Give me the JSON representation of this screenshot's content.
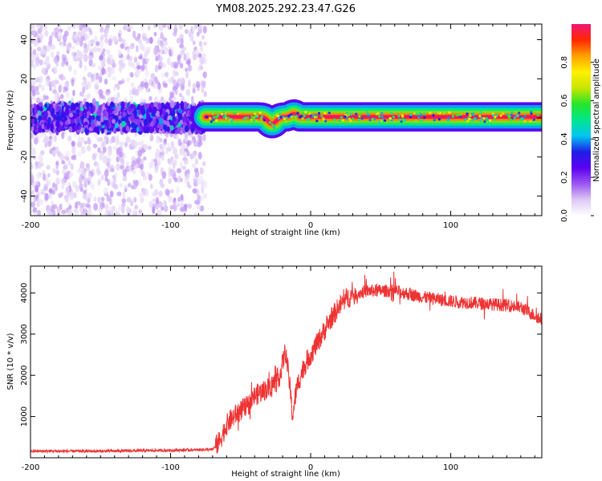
{
  "page_title": "YM08.2025.292.23.47.G26",
  "chart_data": [
    {
      "type": "heatmap",
      "title": "YM08.2025.292.23.47.G26",
      "xlabel": "Height of straight line (km)",
      "ylabel": "Frequency (Hz)",
      "xlim": [
        -200,
        165
      ],
      "ylim": [
        -50,
        48
      ],
      "xticks": [
        -200,
        -100,
        0,
        100
      ],
      "yticks": [
        -40,
        -20,
        0,
        20,
        40
      ],
      "colorbar": {
        "label": "Normalized spectral amplitude",
        "range": [
          0,
          1
        ],
        "ticks": [
          "0.0",
          "0.2",
          "0.4",
          "0.6",
          "0.8"
        ],
        "colors": [
          "#ffffff",
          "#dcc8f5",
          "#9b55f0",
          "#5a00f0",
          "#1e1ee6",
          "#00c8f0",
          "#00e68c",
          "#28e628",
          "#c8e600",
          "#fff000",
          "#ffa000",
          "#ff2800",
          "#f01478"
        ]
      },
      "regions": [
        {
          "name": "noise",
          "x": [
            -200,
            -75
          ],
          "y": [
            -50,
            48
          ],
          "amplitude": 0.15
        },
        {
          "name": "signal-line",
          "x": [
            -75,
            165
          ],
          "center_hz": 0.5,
          "amplitude": 0.95
        },
        {
          "name": "dip",
          "x": [
            -30,
            -25
          ],
          "center_hz": -3,
          "amplitude": 0.9
        }
      ]
    },
    {
      "type": "line",
      "xlabel": "Height of straight line (km)",
      "ylabel": "SNR (10 * v/v)",
      "xlim": [
        -200,
        165
      ],
      "ylim": [
        0,
        4650
      ],
      "xticks": [
        -200,
        -100,
        0,
        100
      ],
      "yticks": [
        1000,
        2000,
        3000,
        4000
      ],
      "series": [
        {
          "name": "SNR",
          "color": "#ee3333",
          "x": [
            -200,
            -150,
            -100,
            -70,
            -65,
            -60,
            -55,
            -50,
            -45,
            -40,
            -35,
            -30,
            -25,
            -22,
            -18,
            -15,
            -13,
            -10,
            -5,
            0,
            5,
            10,
            15,
            20,
            25,
            30,
            40,
            50,
            60,
            80,
            100,
            120,
            140,
            150,
            160,
            165
          ],
          "y": [
            160,
            160,
            180,
            200,
            400,
            800,
            1000,
            1150,
            1250,
            1500,
            1600,
            1700,
            1850,
            2000,
            2600,
            1800,
            1000,
            1700,
            2200,
            2500,
            2800,
            3100,
            3400,
            3650,
            3850,
            3950,
            4050,
            4050,
            4050,
            3900,
            3800,
            3750,
            3700,
            3650,
            3450,
            3350
          ],
          "noise_amplitude": 120
        }
      ]
    }
  ]
}
